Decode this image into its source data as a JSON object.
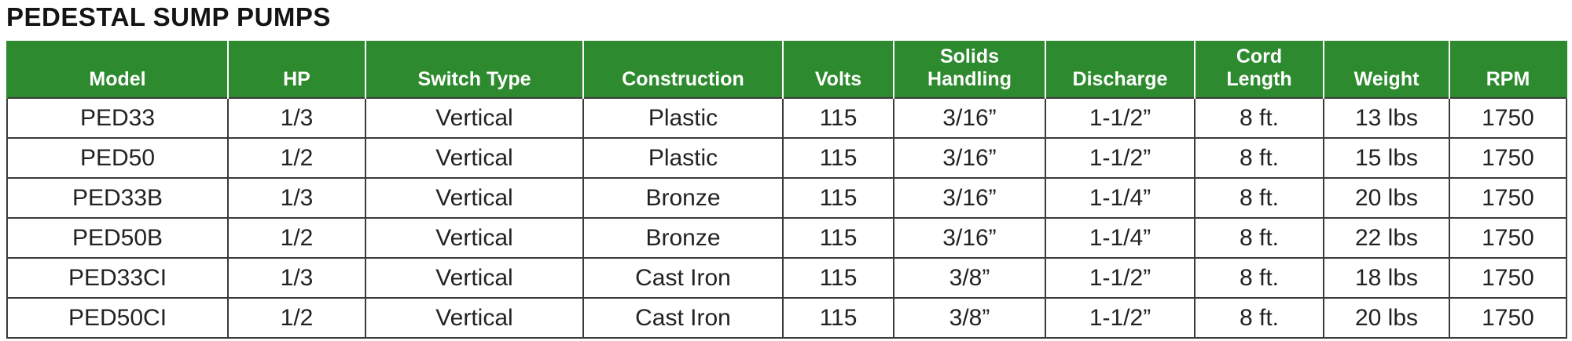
{
  "title": "PEDESTAL SUMP PUMPS",
  "table": {
    "headers": [
      "Model",
      "HP",
      "Switch Type",
      "Construction",
      "Volts",
      "Solids\nHandling",
      "Discharge",
      "Cord\nLength",
      "Weight",
      "RPM"
    ],
    "rows": [
      [
        "PED33",
        "1/3",
        "Vertical",
        "Plastic",
        "115",
        "3/16”",
        "1-1/2”",
        "8 ft.",
        "13 lbs",
        "1750"
      ],
      [
        "PED50",
        "1/2",
        "Vertical",
        "Plastic",
        "115",
        "3/16”",
        "1-1/2”",
        "8 ft.",
        "15 lbs",
        "1750"
      ],
      [
        "PED33B",
        "1/3",
        "Vertical",
        "Bronze",
        "115",
        "3/16”",
        "1-1/4”",
        "8 ft.",
        "20 lbs",
        "1750"
      ],
      [
        "PED50B",
        "1/2",
        "Vertical",
        "Bronze",
        "115",
        "3/16”",
        "1-1/4”",
        "8 ft.",
        "22 lbs",
        "1750"
      ],
      [
        "PED33CI",
        "1/3",
        "Vertical",
        "Cast Iron",
        "115",
        "3/8”",
        "1-1/2”",
        "8 ft.",
        "18 lbs",
        "1750"
      ],
      [
        "PED50CI",
        "1/2",
        "Vertical",
        "Cast Iron",
        "115",
        "3/8”",
        "1-1/2”",
        "8 ft.",
        "20 lbs",
        "1750"
      ]
    ]
  },
  "colors": {
    "header_green": "#2e8a2e",
    "header_text": "#ffffff",
    "grid_line": "#3a3a3a"
  }
}
